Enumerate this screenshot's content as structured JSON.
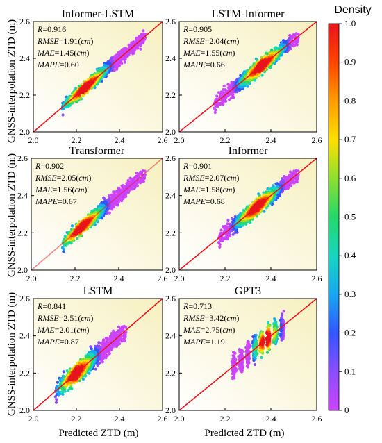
{
  "figure": {
    "ylabel": "GNSS-interpolation ZTD  (m)",
    "xlabel": "Predicted ZTD  (m)",
    "colorbar": {
      "title": "Density",
      "ticks": [
        "1.0",
        "0.9",
        "0.8",
        "0.7",
        "0.6",
        "0.5",
        "0.4",
        "0.3",
        "0.2",
        "0.1",
        "0"
      ],
      "colors": [
        "#cc44ff",
        "#8a4dff",
        "#3355ff",
        "#18a8f0",
        "#18d6c0",
        "#25d86a",
        "#8ee030",
        "#ffe000",
        "#ff9c00",
        "#ff4400",
        "#e8141c"
      ]
    }
  },
  "chart_data": [
    {
      "type": "scatter",
      "title": "Informer-LSTM",
      "stats": [
        {
          "key": "R",
          "text": "=0.916"
        },
        {
          "key": "RMSE",
          "text": "=1.91(",
          "unit": "cm",
          "close": ")"
        },
        {
          "key": "MAE",
          "text": "=1.45(",
          "unit": "cm",
          "close": ")"
        },
        {
          "key": "MAPE",
          "text": "=0.60"
        }
      ],
      "xlim": [
        2.0,
        2.6
      ],
      "ylim": [
        2.0,
        2.6
      ],
      "xticks": [
        "2.0",
        "2.2",
        "2.4",
        "2.6"
      ],
      "yticks": [
        "2.0",
        "2.2",
        "2.4",
        "2.6"
      ],
      "cloud": {
        "xmin": 2.13,
        "xmax": 2.52,
        "spread": 0.028,
        "slope": 1.0,
        "offset": 0.0,
        "peak": 2.24
      }
    },
    {
      "type": "scatter",
      "title": "LSTM-Informer",
      "stats": [
        {
          "key": "R",
          "text": "=0.905"
        },
        {
          "key": "RMSE",
          "text": "=2.04(",
          "unit": "cm",
          "close": ")"
        },
        {
          "key": "MAE",
          "text": "=1.55(",
          "unit": "cm",
          "close": ")"
        },
        {
          "key": "MAPE",
          "text": "=0.66"
        }
      ],
      "xlim": [
        2.0,
        2.6
      ],
      "ylim": [
        2.0,
        2.6
      ],
      "xticks": [
        "2.0",
        "2.2",
        "2.4",
        "2.6"
      ],
      "yticks": [
        "2.0",
        "2.2",
        "2.4",
        "2.6"
      ],
      "cloud": {
        "xmin": 2.15,
        "xmax": 2.52,
        "spread": 0.032,
        "slope": 1.0,
        "offset": 0.0,
        "peak": 2.36
      }
    },
    {
      "type": "scatter",
      "title": "Transformer",
      "stats": [
        {
          "key": "R",
          "text": "=0.902"
        },
        {
          "key": "RMSE",
          "text": "=2.05(",
          "unit": "cm",
          "close": ")"
        },
        {
          "key": "MAE",
          "text": "=1.56(",
          "unit": "cm",
          "close": ")"
        },
        {
          "key": "MAPE",
          "text": "=0.67"
        }
      ],
      "xlim": [
        2.0,
        2.6
      ],
      "ylim": [
        2.0,
        2.6
      ],
      "xticks": [
        "2.0",
        "2.2",
        "2.4",
        "2.6"
      ],
      "yticks": [
        "2.0",
        "2.2",
        "2.4",
        "2.6"
      ],
      "cloud": {
        "xmin": 2.14,
        "xmax": 2.52,
        "spread": 0.03,
        "slope": 1.0,
        "offset": 0.0,
        "peak": 2.23
      }
    },
    {
      "type": "scatter",
      "title": "Informer",
      "stats": [
        {
          "key": "R",
          "text": "=0.901"
        },
        {
          "key": "RMSE",
          "text": "=2.07(",
          "unit": "cm",
          "close": ")"
        },
        {
          "key": "MAE",
          "text": "=1.58(",
          "unit": "cm",
          "close": ")"
        },
        {
          "key": "MAPE",
          "text": "=0.68"
        }
      ],
      "xlim": [
        2.0,
        2.6
      ],
      "ylim": [
        2.0,
        2.6
      ],
      "xticks": [
        "2.0",
        "2.2",
        "2.4",
        "2.6"
      ],
      "yticks": [
        "2.0",
        "2.2",
        "2.4",
        "2.6"
      ],
      "cloud": {
        "xmin": 2.17,
        "xmax": 2.52,
        "spread": 0.033,
        "slope": 1.0,
        "offset": 0.0,
        "peak": 2.34
      }
    },
    {
      "type": "scatter",
      "title": "LSTM",
      "stats": [
        {
          "key": "R",
          "text": "=0.841"
        },
        {
          "key": "RMSE",
          "text": "=2.51(",
          "unit": "cm",
          "close": ")"
        },
        {
          "key": "MAE",
          "text": "=2.01(",
          "unit": "cm",
          "close": ")"
        },
        {
          "key": "MAPE",
          "text": "=0.87"
        }
      ],
      "xlim": [
        2.0,
        2.6
      ],
      "ylim": [
        2.0,
        2.6
      ],
      "xticks": [
        "2.0",
        "2.2",
        "2.4",
        "2.6"
      ],
      "yticks": [
        "2.0",
        "2.2",
        "2.4",
        "2.6"
      ],
      "cloud": {
        "xmin": 2.1,
        "xmax": 2.43,
        "spread": 0.04,
        "slope": 1.0,
        "offset": 0.0,
        "peak": 2.2
      }
    },
    {
      "type": "scatter",
      "title": "GPT3",
      "stats": [
        {
          "key": "R",
          "text": "=0.713"
        },
        {
          "key": "RMSE",
          "text": "=3.42(",
          "unit": "cm",
          "close": ")"
        },
        {
          "key": "MAE",
          "text": "=2.75(",
          "unit": "cm",
          "close": ")"
        },
        {
          "key": "MAPE",
          "text": "=1.19"
        }
      ],
      "xlim": [
        2.0,
        2.6
      ],
      "ylim": [
        2.0,
        2.6
      ],
      "xticks": [
        "2.0",
        "2.2",
        "2.4",
        "2.6"
      ],
      "yticks": [
        "2.0",
        "2.2",
        "2.4",
        "2.6"
      ],
      "cloud": {
        "xmin": 2.235,
        "xmax": 2.45,
        "spread": 0.05,
        "slope": 1.0,
        "offset": 0.0,
        "peak": 2.38,
        "columns": [
          2.24,
          2.27,
          2.3,
          2.33,
          2.36,
          2.39,
          2.42,
          2.45
        ]
      }
    }
  ]
}
